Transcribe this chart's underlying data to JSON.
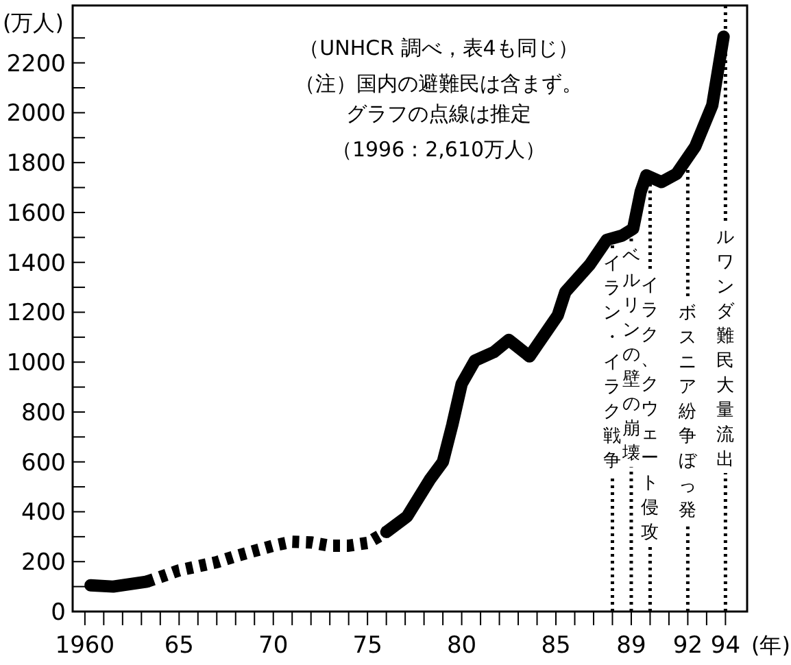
{
  "chart_data": {
    "type": "line",
    "xlabel": "(年)",
    "ylabel": "(万人)",
    "annotations": [
      "（UNHCR 調べ，表4も同じ）",
      "（注）国内の避難民は含まず。",
      "グラフの点線は推定",
      "（1996：2,610万人）"
    ],
    "xlim": [
      1959.35,
      1995.15
    ],
    "xticks": [
      {
        "value": 1960,
        "label": "1960"
      },
      {
        "value": 1961,
        "label": null
      },
      {
        "value": 1962,
        "label": null
      },
      {
        "value": 1963,
        "label": null
      },
      {
        "value": 1964,
        "label": null
      },
      {
        "value": 1965,
        "label": "65"
      },
      {
        "value": 1966,
        "label": null
      },
      {
        "value": 1967,
        "label": null
      },
      {
        "value": 1968,
        "label": null
      },
      {
        "value": 1969,
        "label": null
      },
      {
        "value": 1970,
        "label": "70"
      },
      {
        "value": 1971,
        "label": null
      },
      {
        "value": 1972,
        "label": null
      },
      {
        "value": 1973,
        "label": null
      },
      {
        "value": 1974,
        "label": null
      },
      {
        "value": 1975,
        "label": "75"
      },
      {
        "value": 1976,
        "label": null
      },
      {
        "value": 1977,
        "label": null
      },
      {
        "value": 1978,
        "label": null
      },
      {
        "value": 1979,
        "label": null
      },
      {
        "value": 1980,
        "label": "80"
      },
      {
        "value": 1981,
        "label": null
      },
      {
        "value": 1982,
        "label": null
      },
      {
        "value": 1983,
        "label": null
      },
      {
        "value": 1984,
        "label": null
      },
      {
        "value": 1985,
        "label": "85"
      },
      {
        "value": 1986,
        "label": null
      },
      {
        "value": 1987,
        "label": null
      },
      {
        "value": 1988,
        "label": null
      },
      {
        "value": 1989,
        "label": "89"
      },
      {
        "value": 1990,
        "label": null
      },
      {
        "value": 1991,
        "label": null
      },
      {
        "value": 1992,
        "label": "92"
      },
      {
        "value": 1993,
        "label": null
      },
      {
        "value": 1994,
        "label": "94"
      }
    ],
    "ylim": [
      0,
      2430
    ],
    "yticks": [
      0,
      {
        "value": 100,
        "label": null
      },
      200,
      {
        "value": 300,
        "label": null
      },
      400,
      {
        "value": 500,
        "label": null
      },
      600,
      {
        "value": 700,
        "label": null
      },
      800,
      {
        "value": 900,
        "label": null
      },
      1000,
      {
        "value": 1100,
        "label": null
      },
      1200,
      {
        "value": 1300,
        "label": null
      },
      1400,
      {
        "value": 1500,
        "label": null
      },
      1600,
      {
        "value": 1700,
        "label": null
      },
      1800,
      {
        "value": 1900,
        "label": null
      },
      2000,
      {
        "value": 2100,
        "label": null
      },
      2200,
      {
        "value": 2300,
        "label": null
      }
    ],
    "grid": false,
    "series": [
      {
        "color": "#000000",
        "line_style": "solid",
        "x": [
          1960.3,
          1961.5,
          1963.3
        ],
        "values": [
          105,
          100,
          120
        ]
      },
      {
        "color": "#000000",
        "line_style": "dashed",
        "x": [
          1963.3,
          1965,
          1967,
          1968,
          1970,
          1971,
          1972,
          1973,
          1974,
          1975,
          1976
        ],
        "values": [
          120,
          165,
          198,
          222,
          264,
          280,
          277,
          264,
          264,
          275,
          319
        ]
      },
      {
        "color": "#000000",
        "line_style": "solid",
        "x": [
          1976,
          1977.1,
          1978.3,
          1979,
          1979.5,
          1980,
          1980.7,
          1981.7,
          1982.5,
          1983.6,
          1985.1,
          1985.5,
          1986.8,
          1987.7,
          1988.5,
          1989.1,
          1989.5,
          1989.8,
          1990.6,
          1991.4,
          1992.4,
          1993.3,
          1993.9
        ],
        "values": [
          319,
          381,
          528,
          600,
          748,
          913,
          1006,
          1040,
          1089,
          1023,
          1188,
          1281,
          1391,
          1490,
          1507,
          1535,
          1683,
          1749,
          1722,
          1755,
          1865,
          2030,
          2305
        ]
      }
    ],
    "ref_lines": [
      {
        "axis": "x",
        "value": 1988,
        "label": "イラン・イラク戦争",
        "color": "#000000",
        "line_style": "dotted"
      },
      {
        "axis": "x",
        "value": 1989,
        "label": "ベルリンの壁の崩壊",
        "color": "#000000",
        "line_style": "dotted"
      },
      {
        "axis": "x",
        "value": 1990,
        "label": "イラク、クウェート侵攻",
        "color": "#000000",
        "line_style": "dotted"
      },
      {
        "axis": "x",
        "value": 1992,
        "label": "ボスニア紛争ぼっ発",
        "color": "#000000",
        "line_style": "dotted"
      },
      {
        "axis": "x",
        "value": 1994,
        "label": "ルワンダ難民大量流出",
        "color": "#000000",
        "line_style": "dotted"
      }
    ]
  }
}
